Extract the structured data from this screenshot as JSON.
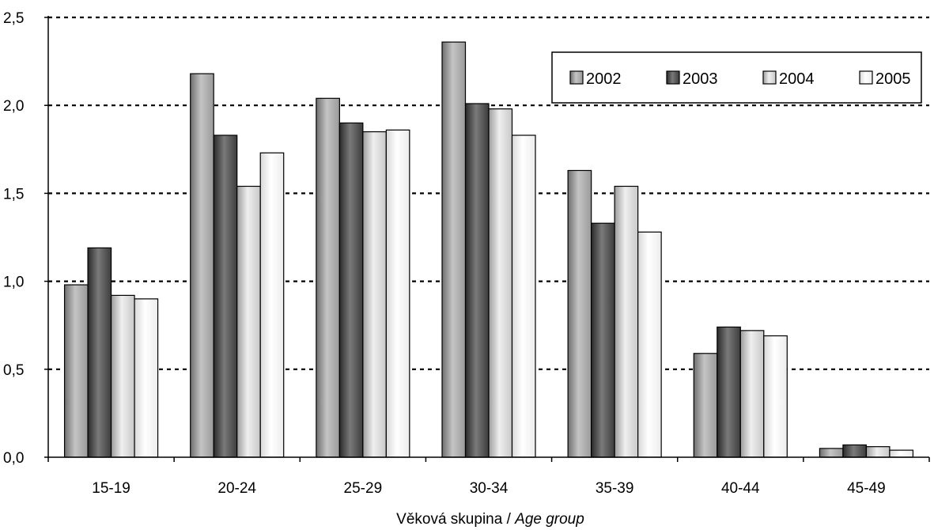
{
  "chart_data": {
    "type": "bar",
    "title": "",
    "categories": [
      "15-19",
      "20-24",
      "25-29",
      "30-34",
      "35-39",
      "40-44",
      "45-49"
    ],
    "series": [
      {
        "name": "2002",
        "values": [
          0.98,
          2.18,
          2.04,
          2.36,
          1.63,
          0.59,
          0.05
        ],
        "color": "#a9a9a9"
      },
      {
        "name": "2003",
        "values": [
          1.19,
          1.83,
          1.9,
          2.01,
          1.33,
          0.74,
          0.07
        ],
        "color": "#555555"
      },
      {
        "name": "2004",
        "values": [
          0.92,
          1.54,
          1.85,
          1.98,
          1.54,
          0.72,
          0.06
        ],
        "color": "#d6d6d6"
      },
      {
        "name": "2005",
        "values": [
          0.9,
          1.73,
          1.86,
          1.83,
          1.28,
          0.69,
          0.04
        ],
        "color": "#f6f6f6"
      }
    ],
    "xlabel_plain": "Věková skupina / ",
    "xlabel_italic": "Age group",
    "ylabel": "",
    "ylim": [
      0,
      2.5
    ],
    "yticks": [
      "0,0",
      "0,5",
      "1,0",
      "1,5",
      "2,0",
      "2,5"
    ],
    "grid": true,
    "legend_position": "top-right"
  }
}
